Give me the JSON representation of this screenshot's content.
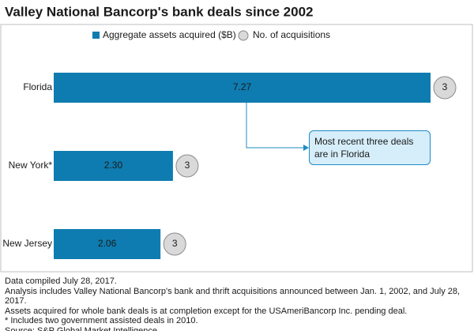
{
  "chart_data": {
    "type": "bar",
    "title": "Valley National Bancorp's bank deals since 2002",
    "categories": [
      "Florida",
      "New York*",
      "New Jersey"
    ],
    "series": [
      {
        "name": "Aggregate assets acquired ($B)",
        "color": "#0e7cb0",
        "values": [
          7.27,
          2.3,
          2.06
        ],
        "value_labels": [
          "7.27",
          "2.30",
          "2.06"
        ]
      },
      {
        "name": "No. of acquisitions",
        "color": "#d9d9d9",
        "values": [
          3,
          3,
          3
        ]
      }
    ],
    "annotation": "Most recent three deals are in Florida",
    "notes": [
      "Data compiled July 28, 2017.",
      "Analysis includes Valley National Bancorp's bank and thrift acquisitions announced between Jan. 1, 2002, and July 28, 2017.",
      "Assets acquired for whole bank deals is at completion except for the USAmeriBancorp Inc. pending deal.",
      "* Includes two government assisted deals in 2010.",
      "Source: S&P Global Market Intelligence"
    ]
  }
}
